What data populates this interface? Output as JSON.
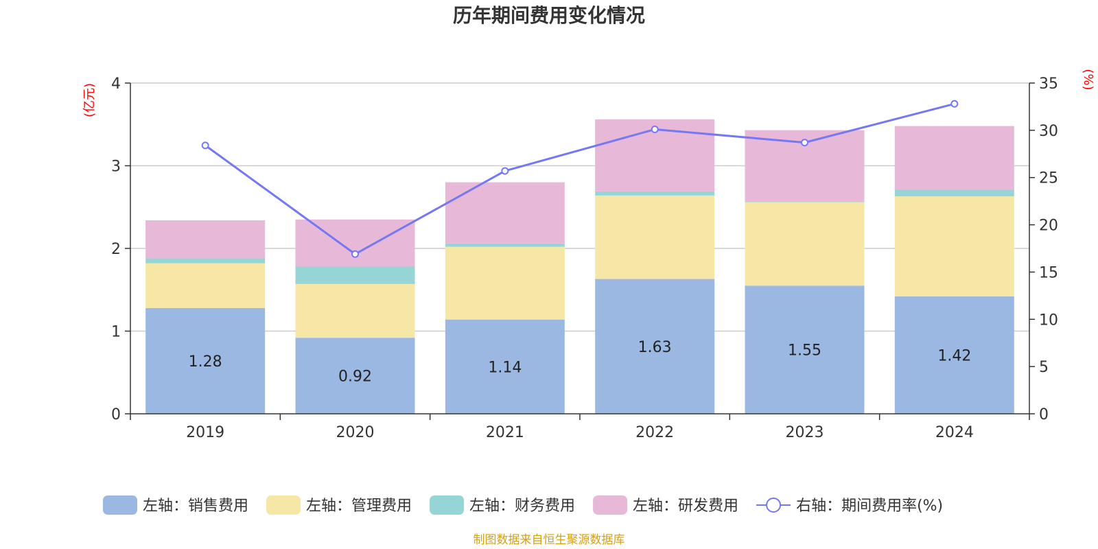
{
  "chart_data": {
    "type": "bar",
    "title": "历年期间费用变化情况",
    "categories": [
      "2019",
      "2020",
      "2021",
      "2022",
      "2023",
      "2024"
    ],
    "left_axis": {
      "unit": "(亿元)",
      "ylim": [
        0,
        4
      ],
      "ticks": [
        "0",
        "1",
        "2",
        "3",
        "4"
      ]
    },
    "right_axis": {
      "unit": "(%)",
      "ylim": [
        0,
        35
      ],
      "ticks": [
        "0",
        "5",
        "10",
        "15",
        "20",
        "25",
        "30",
        "35"
      ]
    },
    "series": [
      {
        "name": "左轴：销售费用",
        "kind": "bar",
        "axis": "left",
        "color": "#9BB8E2",
        "values": [
          1.28,
          0.92,
          1.14,
          1.63,
          1.55,
          1.42
        ],
        "labels": [
          "1.28",
          "0.92",
          "1.14",
          "1.63",
          "1.55",
          "1.42"
        ]
      },
      {
        "name": "左轴：管理费用",
        "kind": "bar",
        "axis": "left",
        "color": "#F7E7A7",
        "values": [
          0.54,
          0.65,
          0.88,
          1.01,
          1.01,
          1.21
        ]
      },
      {
        "name": "左轴：财务费用",
        "kind": "bar",
        "axis": "left",
        "color": "#96D5D6",
        "values": [
          0.06,
          0.21,
          0.04,
          0.05,
          0.01,
          0.08
        ]
      },
      {
        "name": "左轴：研发费用",
        "kind": "bar",
        "axis": "left",
        "color": "#E8B8D9",
        "values": [
          0.46,
          0.57,
          0.74,
          0.87,
          0.86,
          0.77
        ]
      },
      {
        "name": "右轴：期间费用率(%)",
        "kind": "line",
        "axis": "right",
        "color": "#7478F2",
        "values": [
          28.4,
          16.9,
          25.7,
          30.1,
          28.7,
          32.8
        ]
      }
    ],
    "grid": true,
    "legend": "bottom"
  },
  "source": "制图数据来自恒生聚源数据库",
  "colors": {
    "unit": "#FF0000",
    "source": "#D4A017",
    "axis": "#333333",
    "grid": "#CCCCCC"
  }
}
